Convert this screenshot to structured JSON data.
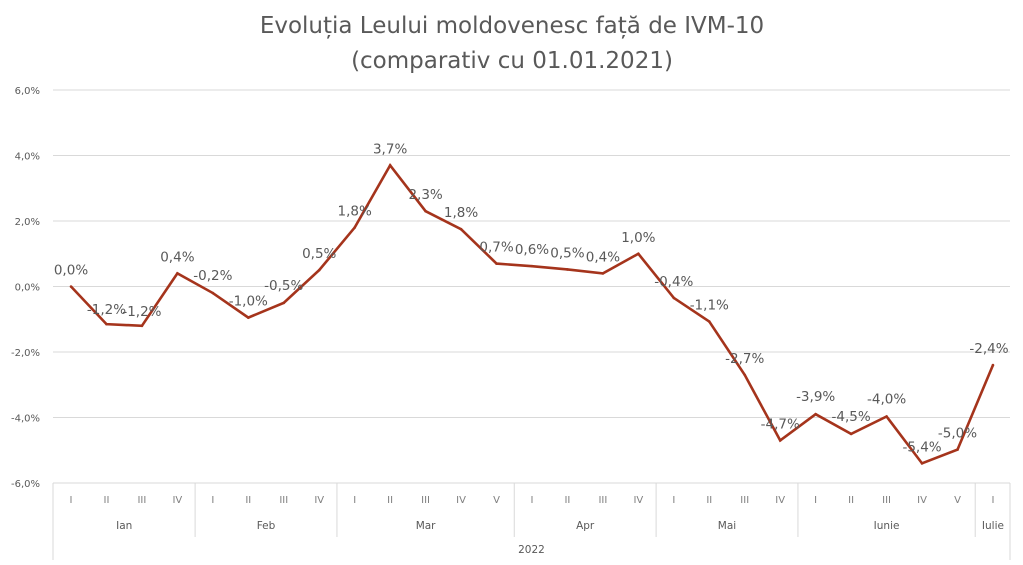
{
  "chart_data": {
    "type": "line",
    "title": [
      "Evoluția Leului moldovenesc față de IVM-10",
      "(comparativ cu 01.01.2021)"
    ],
    "xlabel": "",
    "ylabel": "",
    "ylim": [
      -6,
      6
    ],
    "yticks": [
      6,
      4,
      2,
      0,
      -2,
      -4,
      -6
    ],
    "ytick_labels": [
      "6,0%",
      "4,0%",
      "2,0%",
      "0,0%",
      "-2,0%",
      "-4,0%",
      "-6,0%"
    ],
    "grid": true,
    "line_color": "#a5341c",
    "categories": [
      {
        "week": "I",
        "month": "Ian"
      },
      {
        "week": "II",
        "month": "Ian"
      },
      {
        "week": "III",
        "month": "Ian"
      },
      {
        "week": "IV",
        "month": "Ian"
      },
      {
        "week": "I",
        "month": "Feb"
      },
      {
        "week": "II",
        "month": "Feb"
      },
      {
        "week": "III",
        "month": "Feb"
      },
      {
        "week": "IV",
        "month": "Feb"
      },
      {
        "week": "I",
        "month": "Mar"
      },
      {
        "week": "II",
        "month": "Mar"
      },
      {
        "week": "III",
        "month": "Mar"
      },
      {
        "week": "IV",
        "month": "Mar"
      },
      {
        "week": "V",
        "month": "Mar"
      },
      {
        "week": "I",
        "month": "Apr"
      },
      {
        "week": "II",
        "month": "Apr"
      },
      {
        "week": "III",
        "month": "Apr"
      },
      {
        "week": "IV",
        "month": "Apr"
      },
      {
        "week": "I",
        "month": "Mai"
      },
      {
        "week": "II",
        "month": "Mai"
      },
      {
        "week": "III",
        "month": "Mai"
      },
      {
        "week": "IV",
        "month": "Mai"
      },
      {
        "week": "I",
        "month": "Iunie"
      },
      {
        "week": "II",
        "month": "Iunie"
      },
      {
        "week": "III",
        "month": "Iunie"
      },
      {
        "week": "IV",
        "month": "Iunie"
      },
      {
        "week": "V",
        "month": "Iunie"
      },
      {
        "week": "I",
        "month": "Iulie"
      }
    ],
    "months": [
      {
        "name": "Ian",
        "count": 4
      },
      {
        "name": "Feb",
        "count": 4
      },
      {
        "name": "Mar",
        "count": 5
      },
      {
        "name": "Apr",
        "count": 4
      },
      {
        "name": "Mai",
        "count": 4
      },
      {
        "name": "Iunie",
        "count": 5
      },
      {
        "name": "Iulie",
        "count": 1
      }
    ],
    "year": "2022",
    "series": [
      {
        "name": "Evoluția Leului moldovenesc față de IVM-10",
        "values": [
          0.0,
          -1.15,
          -1.2,
          0.4,
          -0.2,
          -0.95,
          -0.5,
          0.5,
          1.8,
          3.7,
          2.3,
          1.75,
          0.7,
          0.62,
          0.52,
          0.4,
          1.0,
          -0.35,
          -1.07,
          -2.7,
          -4.7,
          -3.9,
          -4.5,
          -3.97,
          -5.4,
          -4.98,
          -2.4
        ],
        "labels": [
          "0,0%",
          "-1,2%",
          "-1,2%",
          "0,4%",
          "-0,2%",
          "-1,0%",
          "-0,5%",
          "0,5%",
          "1,8%",
          "3,7%",
          "2,3%",
          "1,8%",
          "0,7%",
          "0,6%",
          "0,5%",
          "0,4%",
          "1,0%",
          "-0,4%",
          "-1,1%",
          "-2,7%",
          "-4,7%",
          "-3,9%",
          "-4,5%",
          "-4,0%",
          "-5,4%",
          "-5,0%",
          "-2,4%"
        ]
      }
    ]
  }
}
